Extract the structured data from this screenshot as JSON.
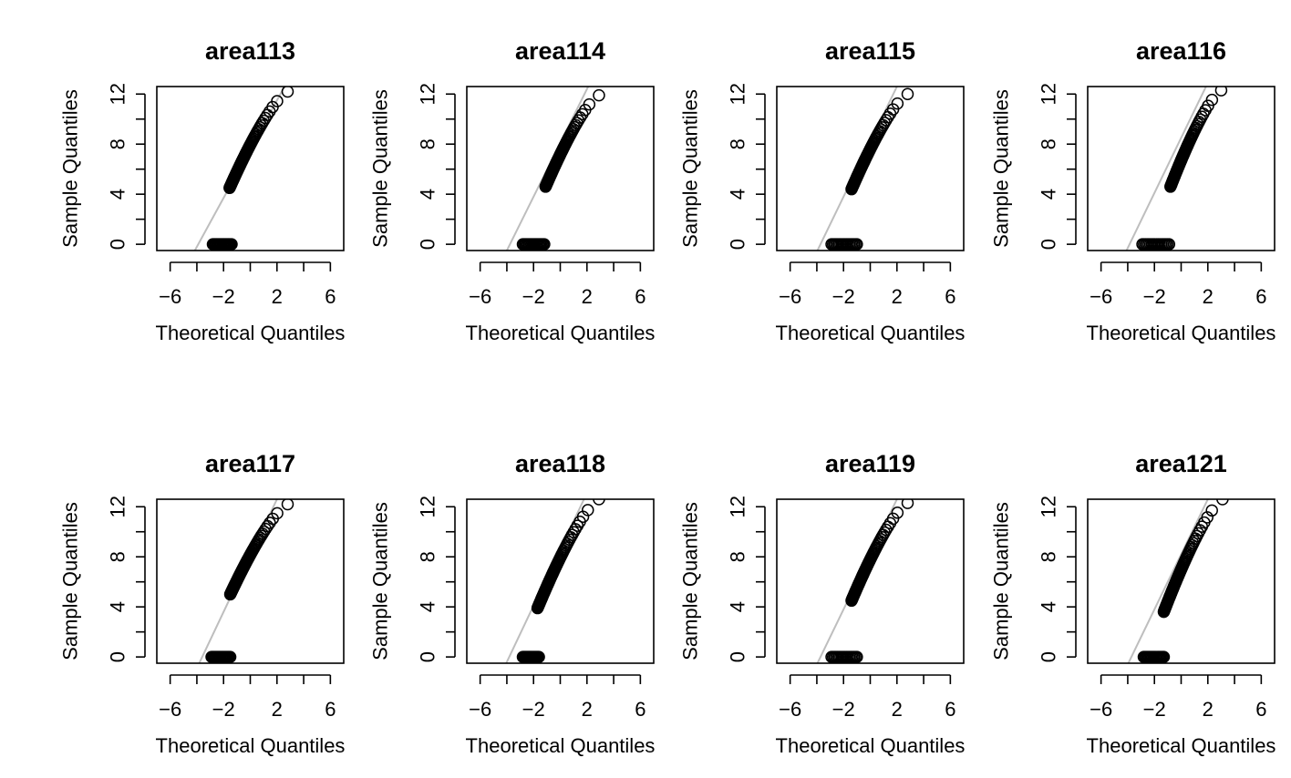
{
  "chart_data": [
    {
      "type": "scatter",
      "title": "area113",
      "xlabel": "Theoretical Quantiles",
      "ylabel": "Sample Quantiles",
      "xlim": [
        -7,
        7
      ],
      "ylim": [
        -0.5,
        12.6
      ],
      "x_ticks": [
        "−6",
        "−2",
        "2",
        "6"
      ],
      "y_ticks": [
        "0",
        "4",
        "8",
        "12"
      ],
      "reference_line": {
        "color": "#bebebe",
        "slope": 1.95,
        "intercept": 7.6
      },
      "points": {
        "zeros": {
          "y": 0,
          "x_from": -2.8,
          "x_to": -1.4
        },
        "curve": {
          "x_from": -1.55,
          "x_to": 2.8,
          "y_from": 4.5,
          "y_to": 12.2
        }
      },
      "grid": false
    },
    {
      "type": "scatter",
      "title": "area114",
      "xlabel": "Theoretical Quantiles",
      "ylabel": "Sample Quantiles",
      "xlim": [
        -7,
        7
      ],
      "ylim": [
        -0.5,
        12.6
      ],
      "x_ticks": [
        "−6",
        "−2",
        "2",
        "6"
      ],
      "y_ticks": [
        "0",
        "4",
        "8",
        "12"
      ],
      "reference_line": {
        "color": "#bebebe",
        "slope": 2.15,
        "intercept": 8.1
      },
      "points": {
        "zeros": {
          "y": 0,
          "x_from": -2.8,
          "x_to": -1.2
        },
        "curve": {
          "x_from": -1.1,
          "x_to": 2.9,
          "y_from": 4.6,
          "y_to": 11.9
        }
      },
      "grid": false
    },
    {
      "type": "scatter",
      "title": "area115",
      "xlabel": "Theoretical Quantiles",
      "ylabel": "Sample Quantiles",
      "xlim": [
        -7,
        7
      ],
      "ylim": [
        -0.5,
        12.6
      ],
      "x_ticks": [
        "−6",
        "−2",
        "2",
        "6"
      ],
      "y_ticks": [
        "0",
        "4",
        "8",
        "12"
      ],
      "reference_line": {
        "color": "#bebebe",
        "slope": 2.2,
        "intercept": 8.2
      },
      "points": {
        "zeros": {
          "y": 0,
          "x_from": -2.9,
          "x_to": -1.0
        },
        "curve": {
          "x_from": -1.4,
          "x_to": 2.8,
          "y_from": 4.4,
          "y_to": 12.0
        }
      },
      "grid": false
    },
    {
      "type": "scatter",
      "title": "area116",
      "xlabel": "Theoretical Quantiles",
      "ylabel": "Sample Quantiles",
      "xlim": [
        -7,
        7
      ],
      "ylim": [
        -0.5,
        12.6
      ],
      "x_ticks": [
        "−6",
        "−2",
        "2",
        "6"
      ],
      "y_ticks": [
        "0",
        "4",
        "8",
        "12"
      ],
      "reference_line": {
        "color": "#bebebe",
        "slope": 2.2,
        "intercept": 8.5
      },
      "points": {
        "zeros": {
          "y": 0,
          "x_from": -2.9,
          "x_to": -0.9
        },
        "curve": {
          "x_from": -0.8,
          "x_to": 3.0,
          "y_from": 4.6,
          "y_to": 12.3
        }
      },
      "grid": false
    },
    {
      "type": "scatter",
      "title": "area117",
      "xlabel": "Theoretical Quantiles",
      "ylabel": "Sample Quantiles",
      "xlim": [
        -7,
        7
      ],
      "ylim": [
        -0.5,
        12.6
      ],
      "x_ticks": [
        "−6",
        "−2",
        "2",
        "6"
      ],
      "y_ticks": [
        "0",
        "4",
        "8",
        "12"
      ],
      "reference_line": {
        "color": "#bebebe",
        "slope": 2.25,
        "intercept": 8.1
      },
      "points": {
        "zeros": {
          "y": 0,
          "x_from": -2.9,
          "x_to": -1.5
        },
        "curve": {
          "x_from": -1.5,
          "x_to": 2.8,
          "y_from": 5.0,
          "y_to": 12.2
        }
      },
      "grid": false
    },
    {
      "type": "scatter",
      "title": "area118",
      "xlabel": "Theoretical Quantiles",
      "ylabel": "Sample Quantiles",
      "xlim": [
        -7,
        7
      ],
      "ylim": [
        -0.5,
        12.6
      ],
      "x_ticks": [
        "−6",
        "−2",
        "2",
        "6"
      ],
      "y_ticks": [
        "0",
        "4",
        "8",
        "12"
      ],
      "reference_line": {
        "color": "#bebebe",
        "slope": 2.25,
        "intercept": 8.6
      },
      "points": {
        "zeros": {
          "y": 0,
          "x_from": -2.8,
          "x_to": -1.6
        },
        "curve": {
          "x_from": -1.7,
          "x_to": 2.9,
          "y_from": 3.9,
          "y_to": 12.6
        }
      },
      "grid": false
    },
    {
      "type": "scatter",
      "title": "area119",
      "xlabel": "Theoretical Quantiles",
      "ylabel": "Sample Quantiles",
      "xlim": [
        -7,
        7
      ],
      "ylim": [
        -0.5,
        12.6
      ],
      "x_ticks": [
        "−6",
        "−2",
        "2",
        "6"
      ],
      "y_ticks": [
        "0",
        "4",
        "8",
        "12"
      ],
      "reference_line": {
        "color": "#bebebe",
        "slope": 2.2,
        "intercept": 8.2
      },
      "points": {
        "zeros": {
          "y": 0,
          "x_from": -2.9,
          "x_to": -1.0
        },
        "curve": {
          "x_from": -1.4,
          "x_to": 2.8,
          "y_from": 4.5,
          "y_to": 12.3
        }
      },
      "grid": false
    },
    {
      "type": "scatter",
      "title": "area121",
      "xlabel": "Theoretical Quantiles",
      "ylabel": "Sample Quantiles",
      "xlim": [
        -7,
        7
      ],
      "ylim": [
        -0.5,
        12.6
      ],
      "x_ticks": [
        "−6",
        "−2",
        "2",
        "6"
      ],
      "y_ticks": [
        "0",
        "4",
        "8",
        "12"
      ],
      "reference_line": {
        "color": "#bebebe",
        "slope": 2.2,
        "intercept": 8.2
      },
      "points": {
        "zeros": {
          "y": 0,
          "x_from": -2.8,
          "x_to": -1.3
        },
        "curve": {
          "x_from": -1.3,
          "x_to": 3.1,
          "y_from": 3.6,
          "y_to": 12.6
        }
      },
      "grid": false
    }
  ]
}
